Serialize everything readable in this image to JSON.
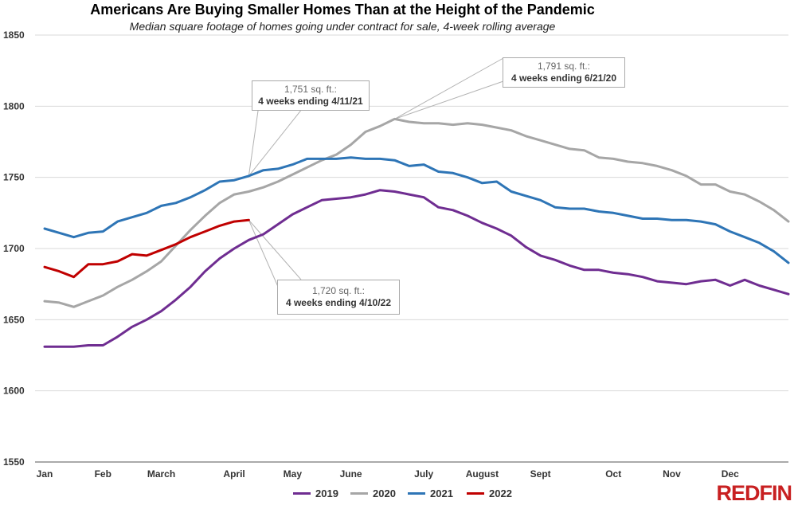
{
  "title": "Americans Are Buying Smaller Homes Than at the Height of the Pandemic",
  "subtitle": "Median square footage of homes going under contract for sale, 4-week rolling average",
  "brand": "REDFIN",
  "chart_data": {
    "type": "line",
    "title": "Americans Are Buying Smaller Homes Than at the Height of the Pandemic",
    "subtitle": "Median square footage of homes going under contract for sale, 4-week rolling average",
    "xlabel": "",
    "ylabel": "",
    "ylim": [
      1550,
      1850
    ],
    "yticks": [
      1550,
      1600,
      1650,
      1700,
      1750,
      1800,
      1850
    ],
    "xlim": [
      1,
      52
    ],
    "month_labels": [
      {
        "label": "Jan",
        "week": 1
      },
      {
        "label": "Feb",
        "week": 5
      },
      {
        "label": "March",
        "week": 9
      },
      {
        "label": "April",
        "week": 14
      },
      {
        "label": "May",
        "week": 18
      },
      {
        "label": "June",
        "week": 22
      },
      {
        "label": "July",
        "week": 27
      },
      {
        "label": "August",
        "week": 31
      },
      {
        "label": "Sept",
        "week": 35
      },
      {
        "label": "Oct",
        "week": 40
      },
      {
        "label": "Nov",
        "week": 44
      },
      {
        "label": "Dec",
        "week": 48
      }
    ],
    "grid": true,
    "legend_position": "bottom",
    "series": [
      {
        "name": "2019",
        "color": "#6f2d91",
        "x": [
          1,
          2,
          3,
          4,
          5,
          6,
          7,
          8,
          9,
          10,
          11,
          12,
          13,
          14,
          15,
          16,
          17,
          18,
          19,
          20,
          21,
          22,
          23,
          24,
          25,
          26,
          27,
          28,
          29,
          30,
          31,
          32,
          33,
          34,
          35,
          36,
          37,
          38,
          39,
          40,
          41,
          42,
          43,
          44,
          45,
          46,
          47,
          48,
          49,
          50,
          51,
          52
        ],
        "values": [
          1631,
          1631,
          1631,
          1632,
          1632,
          1638,
          1645,
          1650,
          1656,
          1664,
          1673,
          1684,
          1693,
          1700,
          1706,
          1710,
          1717,
          1724,
          1729,
          1734,
          1735,
          1736,
          1738,
          1741,
          1740,
          1738,
          1736,
          1729,
          1727,
          1723,
          1718,
          1714,
          1709,
          1701,
          1695,
          1692,
          1688,
          1685,
          1685,
          1683,
          1682,
          1680,
          1677,
          1676,
          1675,
          1677,
          1678,
          1674,
          1678,
          1674,
          1671,
          1668
        ]
      },
      {
        "name": "2020",
        "color": "#a6a6a6",
        "x": [
          1,
          2,
          3,
          4,
          5,
          6,
          7,
          8,
          9,
          10,
          11,
          12,
          13,
          14,
          15,
          16,
          17,
          18,
          19,
          20,
          21,
          22,
          23,
          24,
          25,
          26,
          27,
          28,
          29,
          30,
          31,
          32,
          33,
          34,
          35,
          36,
          37,
          38,
          39,
          40,
          41,
          42,
          43,
          44,
          45,
          46,
          47,
          48,
          49,
          50,
          51,
          52
        ],
        "values": [
          1663,
          1662,
          1659,
          1663,
          1667,
          1673,
          1678,
          1684,
          1691,
          1702,
          1713,
          1723,
          1732,
          1738,
          1740,
          1743,
          1747,
          1752,
          1757,
          1762,
          1766,
          1773,
          1782,
          1786,
          1791,
          1789,
          1788,
          1788,
          1787,
          1788,
          1787,
          1785,
          1783,
          1779,
          1776,
          1773,
          1770,
          1769,
          1764,
          1763,
          1761,
          1760,
          1758,
          1755,
          1751,
          1745,
          1745,
          1740,
          1738,
          1733,
          1727,
          1719
        ]
      },
      {
        "name": "2021",
        "color": "#2e75b6",
        "x": [
          1,
          2,
          3,
          4,
          5,
          6,
          7,
          8,
          9,
          10,
          11,
          12,
          13,
          14,
          15,
          16,
          17,
          18,
          19,
          20,
          21,
          22,
          23,
          24,
          25,
          26,
          27,
          28,
          29,
          30,
          31,
          32,
          33,
          34,
          35,
          36,
          37,
          38,
          39,
          40,
          41,
          42,
          43,
          44,
          45,
          46,
          47,
          48,
          49,
          50,
          51,
          52
        ],
        "values": [
          1714,
          1711,
          1708,
          1711,
          1712,
          1719,
          1722,
          1725,
          1730,
          1732,
          1736,
          1741,
          1747,
          1748,
          1751,
          1755,
          1756,
          1759,
          1763,
          1763,
          1763,
          1764,
          1763,
          1763,
          1762,
          1758,
          1759,
          1754,
          1753,
          1750,
          1746,
          1747,
          1740,
          1737,
          1734,
          1729,
          1728,
          1728,
          1726,
          1725,
          1723,
          1721,
          1721,
          1720,
          1720,
          1719,
          1717,
          1712,
          1708,
          1704,
          1698,
          1690
        ]
      },
      {
        "name": "2022",
        "color": "#c00000",
        "x": [
          1,
          2,
          3,
          4,
          5,
          6,
          7,
          8,
          9,
          10,
          11,
          12,
          13,
          14,
          15
        ],
        "values": [
          1687,
          1684,
          1680,
          1689,
          1689,
          1691,
          1696,
          1695,
          1699,
          1703,
          1708,
          1712,
          1716,
          1719,
          1720
        ]
      }
    ],
    "annotations": [
      {
        "value": "1,751 sq. ft.:",
        "date": "4 weeks ending 4/11/21",
        "series": "2021",
        "x": 15,
        "y": 1751
      },
      {
        "value": "1,791 sq. ft.:",
        "date": "4 weeks ending 6/21/20",
        "series": "2020",
        "x": 25,
        "y": 1791
      },
      {
        "value": "1,720 sq. ft.:",
        "date": "4 weeks ending 4/10/22",
        "series": "2022",
        "x": 15,
        "y": 1720
      }
    ]
  }
}
